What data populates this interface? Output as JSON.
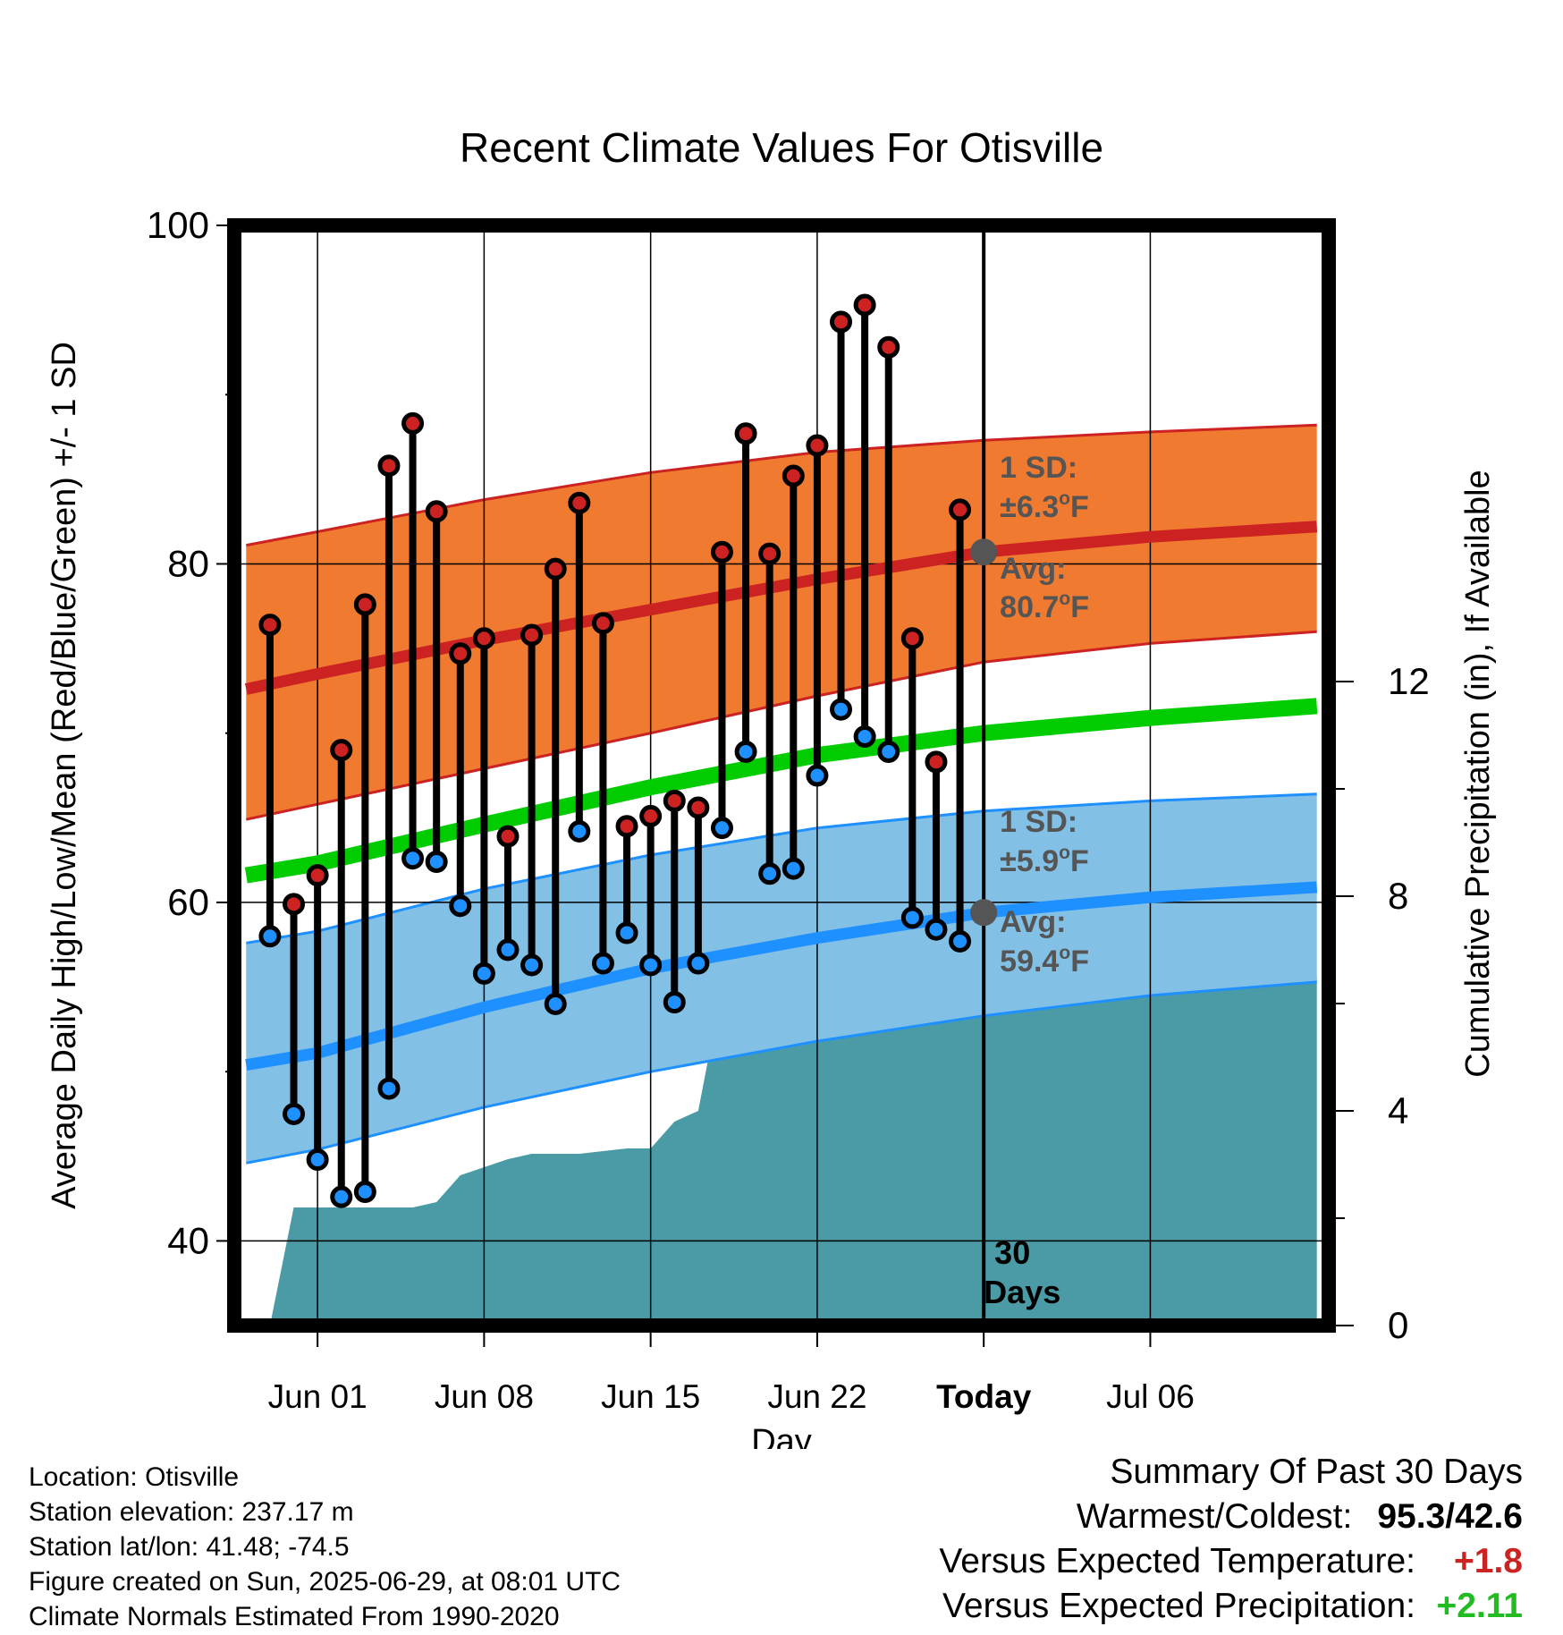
{
  "chart_data": {
    "type": "line",
    "title": "Recent Climate Values For Otisville",
    "xlabel": "Day",
    "ylabel": "Average Daily High/Low/Mean (Red/Blue/Green) +/- 1 SD",
    "y2label": "Cumulative Precipitation (in), If Available",
    "ylim": [
      35,
      100
    ],
    "y2lim": [
      0,
      20.5
    ],
    "yticks": [
      "40",
      "60",
      "80",
      "100"
    ],
    "y2ticks": [
      "0",
      "4",
      "8",
      "12"
    ],
    "xlim": [
      -3.5,
      42.5
    ],
    "xticks": [
      {
        "day": 0,
        "label": "Jun 01"
      },
      {
        "day": 7,
        "label": "Jun 08"
      },
      {
        "day": 14,
        "label": "Jun 15"
      },
      {
        "day": 21,
        "label": "Jun 22"
      },
      {
        "day": 28,
        "label": "Today"
      },
      {
        "day": 35,
        "label": "Jul 06"
      }
    ],
    "today_day": 28,
    "today_label": [
      "30",
      "Days"
    ],
    "normals": {
      "days": [
        -3,
        0,
        7,
        14,
        21,
        28,
        35,
        42
      ],
      "high": [
        72.6,
        73.5,
        75.5,
        77.3,
        79.1,
        80.7,
        81.6,
        82.2
      ],
      "high_sd_upper": [
        81.1,
        81.9,
        83.8,
        85.4,
        86.6,
        87.3,
        87.8,
        88.2
      ],
      "high_sd_lower": [
        64.9,
        65.8,
        67.9,
        70.0,
        72.2,
        74.2,
        75.3,
        76.0
      ],
      "mean": [
        61.6,
        62.3,
        64.6,
        66.8,
        68.7,
        70.0,
        70.9,
        71.6
      ],
      "low": [
        50.4,
        51.1,
        53.8,
        56.1,
        57.9,
        59.4,
        60.3,
        60.9
      ],
      "low_sd_upper": [
        57.6,
        58.3,
        60.8,
        62.8,
        64.4,
        65.4,
        66.0,
        66.4
      ],
      "low_sd_lower": [
        44.6,
        45.4,
        47.9,
        50.0,
        51.8,
        53.3,
        54.5,
        55.3
      ]
    },
    "series": [
      {
        "name": "High",
        "color": "#cc2222",
        "days": [
          -2,
          -1,
          0,
          1,
          2,
          3,
          4,
          5,
          6,
          7,
          8,
          9,
          10,
          11,
          12,
          13,
          14,
          15,
          16,
          17,
          18,
          19,
          20,
          21,
          22,
          23,
          24,
          25,
          26,
          27
        ],
        "values": [
          76.4,
          59.9,
          61.6,
          69.0,
          77.6,
          85.8,
          88.3,
          83.1,
          74.7,
          75.6,
          63.9,
          75.8,
          79.7,
          83.6,
          76.5,
          64.5,
          65.1,
          66.0,
          65.6,
          80.7,
          87.7,
          80.6,
          85.2,
          87.0,
          94.3,
          95.3,
          92.8,
          75.6,
          68.3,
          83.2
        ]
      },
      {
        "name": "Low",
        "color": "#1e90ff",
        "days": [
          -2,
          -1,
          0,
          1,
          2,
          3,
          4,
          5,
          6,
          7,
          8,
          9,
          10,
          11,
          12,
          13,
          14,
          15,
          16,
          17,
          18,
          19,
          20,
          21,
          22,
          23,
          24,
          25,
          26,
          27
        ],
        "values": [
          58.0,
          47.5,
          44.8,
          42.6,
          42.9,
          49.0,
          62.6,
          62.4,
          59.8,
          55.8,
          57.2,
          56.3,
          54.0,
          64.2,
          56.4,
          58.2,
          56.3,
          54.1,
          56.4,
          64.4,
          68.9,
          61.7,
          62.0,
          67.5,
          71.4,
          69.8,
          68.9,
          59.1,
          58.4,
          57.7
        ]
      },
      {
        "name": "Precipitation",
        "color": "#4a9ba6",
        "days": [
          -2,
          -1,
          0,
          1,
          2,
          3,
          4,
          5,
          6,
          7,
          8,
          9,
          10,
          11,
          12,
          13,
          14,
          15,
          16,
          17,
          18,
          19,
          20,
          21,
          22,
          23,
          24,
          25,
          26,
          27,
          28,
          42
        ],
        "values": [
          0,
          2.2,
          2.2,
          2.2,
          2.2,
          2.2,
          2.2,
          2.3,
          2.8,
          2.95,
          3.1,
          3.2,
          3.2,
          3.2,
          3.25,
          3.3,
          3.3,
          3.8,
          4.0,
          6.3,
          6.3,
          6.3,
          6.3,
          6.35,
          6.35,
          6.35,
          6.35,
          6.5,
          6.5,
          6.5,
          6.5,
          6.5
        ]
      }
    ],
    "annotations": {
      "high_sd_label": [
        "1 SD:",
        "±6.3",
        "o",
        "F"
      ],
      "high_avg_label": [
        "Avg:",
        "80.7",
        "o",
        "F"
      ],
      "low_sd_label": [
        "1 SD:",
        "±5.9",
        "o",
        "F"
      ],
      "low_avg_label": [
        "Avg:",
        "59.4",
        "o",
        "F"
      ],
      "high_avg": 80.7,
      "low_avg": 59.4
    },
    "colors": {
      "high_band": "#f07a30",
      "high_line": "#cc2222",
      "low_band": "#82c0e6",
      "low_line": "#1e90ff",
      "mean_line": "#00cc00",
      "precip": "#4a9ba6",
      "annotation_text": "#555555",
      "marker_gray": "#555555"
    }
  },
  "info": {
    "location": "Location: Otisville",
    "elevation": "Station elevation: 237.17 m",
    "latlon": "Station lat/lon: 41.48; -74.5",
    "created": "Figure created on Sun, 2025-06-29, at 08:01 UTC",
    "normals": "Climate Normals Estimated From 1990-2020"
  },
  "summary": {
    "title": "Summary Of Past 30 Days",
    "warm_cold_label": "Warmest/Coldest:",
    "warm_cold_value": "95.3/42.6",
    "temp_label": "Versus Expected Temperature:",
    "temp_value": "+1.8",
    "temp_color": "#cc2222",
    "precip_label": "Versus Expected Precipitation:",
    "precip_value": "+2.11",
    "precip_color": "#22bb22"
  }
}
